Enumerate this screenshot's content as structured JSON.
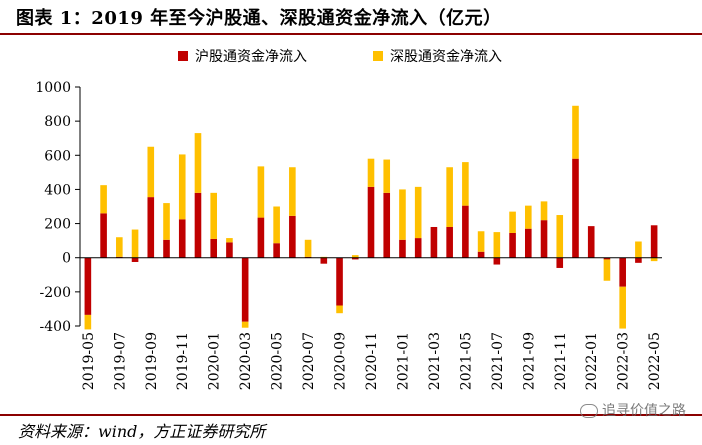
{
  "title": "图表 1：2019 年至今沪股通、深股通资金净流入（亿元）",
  "source": "资料来源：wind，方正证券研究所",
  "watermark": "追寻价值之路",
  "colors": {
    "sh": "#c00000",
    "sz": "#ffc000",
    "rule": "#8b0000"
  },
  "chart_data": {
    "type": "bar",
    "stacked": true,
    "legend_position": "top",
    "ylim": [
      -400,
      1000
    ],
    "yticks": [
      -400,
      -200,
      0,
      200,
      400,
      600,
      800,
      1000
    ],
    "grid": false,
    "xtick_labels": [
      "2019-05",
      "2019-07",
      "2019-09",
      "2019-11",
      "2020-01",
      "2020-03",
      "2020-05",
      "2020-07",
      "2020-09",
      "2020-11",
      "2021-01",
      "2021-03",
      "2021-05",
      "2021-07",
      "2021-09",
      "2021-11",
      "2022-01",
      "2022-03",
      "2022-05"
    ],
    "categories": [
      "2019-05",
      "2019-06",
      "2019-07",
      "2019-08",
      "2019-09",
      "2019-10",
      "2019-11",
      "2019-12",
      "2020-01",
      "2020-02",
      "2020-03",
      "2020-04",
      "2020-05",
      "2020-06",
      "2020-07",
      "2020-08",
      "2020-09",
      "2020-10",
      "2020-11",
      "2020-12",
      "2021-01",
      "2021-02",
      "2021-03",
      "2021-04",
      "2021-05",
      "2021-06",
      "2021-07",
      "2021-08",
      "2021-09",
      "2021-10",
      "2021-11",
      "2021-12",
      "2022-01",
      "2022-02",
      "2022-03",
      "2022-04",
      "2022-05"
    ],
    "series": [
      {
        "name": "沪股通资金净流入",
        "values": [
          -335,
          260,
          5,
          -25,
          355,
          105,
          225,
          380,
          110,
          90,
          -375,
          235,
          85,
          245,
          5,
          -35,
          -280,
          -10,
          415,
          380,
          105,
          115,
          180,
          180,
          305,
          35,
          -40,
          145,
          170,
          220,
          -60,
          580,
          185,
          -10,
          -170,
          -30,
          190
        ]
      },
      {
        "name": "深股通资金净流入",
        "values": [
          -85,
          165,
          115,
          165,
          295,
          215,
          380,
          350,
          270,
          25,
          -35,
          300,
          215,
          285,
          100,
          5,
          -45,
          15,
          165,
          195,
          295,
          300,
          0,
          350,
          255,
          120,
          150,
          125,
          135,
          110,
          250,
          310,
          0,
          -125,
          -245,
          95,
          -20
        ]
      }
    ]
  }
}
